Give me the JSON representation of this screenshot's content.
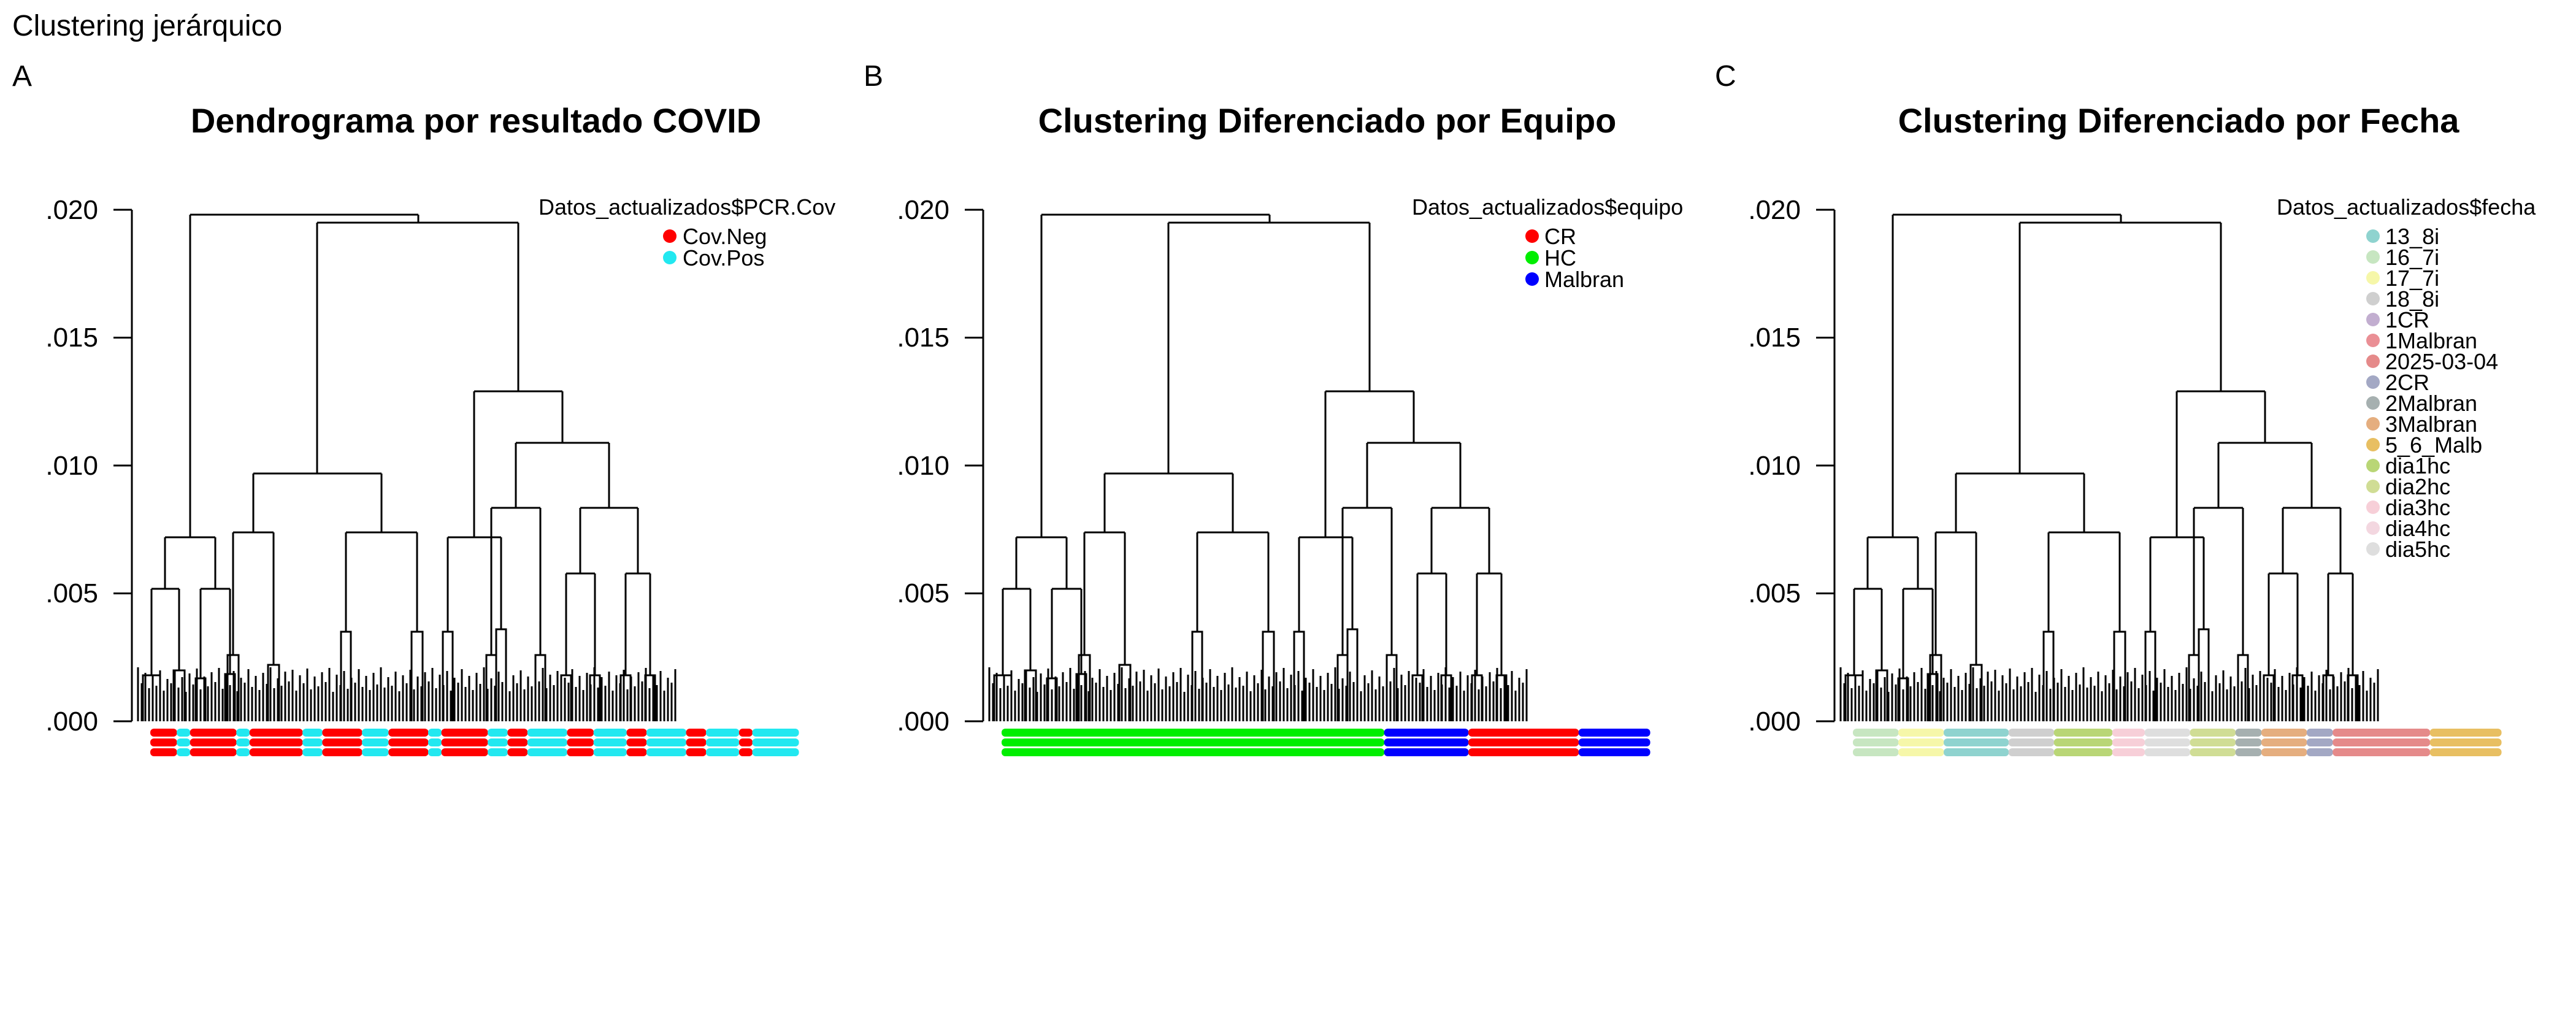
{
  "figure_title": "Clustering jerárquico",
  "chart_data": [
    {
      "type": "dendrogram",
      "panel_label": "A",
      "title": "Dendrograma por resultado COVID",
      "xlabel": "",
      "ylabel": "",
      "ylim": [
        0,
        0.02
      ],
      "yticks": [
        ".000",
        ".005",
        ".010",
        ".015",
        ".020"
      ],
      "merge_heights": {
        "root": 0.0198,
        "left_branch": 0.0072,
        "right_branch": 0.0195,
        "mid_cluster": 0.0097,
        "right_cluster": 0.0129
      },
      "legend": {
        "title": "Datos_actualizados$PCR.Cov",
        "placement": "top-right",
        "entries": [
          {
            "label": "Cov.Neg",
            "color": "#ff0000"
          },
          {
            "label": "Cov.Pos",
            "color": "#22e8f0"
          }
        ]
      },
      "leaf_color_runs": [
        {
          "label": "Cov.Neg",
          "share": 0.04
        },
        {
          "label": "Cov.Pos",
          "share": 0.02
        },
        {
          "label": "Cov.Neg",
          "share": 0.07
        },
        {
          "label": "Cov.Pos",
          "share": 0.02
        },
        {
          "label": "Cov.Neg",
          "share": 0.08
        },
        {
          "label": "Cov.Pos",
          "share": 0.03
        },
        {
          "label": "Cov.Neg",
          "share": 0.06
        },
        {
          "label": "Cov.Pos",
          "share": 0.04
        },
        {
          "label": "Cov.Neg",
          "share": 0.06
        },
        {
          "label": "Cov.Pos",
          "share": 0.02
        },
        {
          "label": "Cov.Neg",
          "share": 0.07
        },
        {
          "label": "Cov.Pos",
          "share": 0.03
        },
        {
          "label": "Cov.Neg",
          "share": 0.03
        },
        {
          "label": "Cov.Pos",
          "share": 0.06
        },
        {
          "label": "Cov.Neg",
          "share": 0.04
        },
        {
          "label": "Cov.Pos",
          "share": 0.05
        },
        {
          "label": "Cov.Neg",
          "share": 0.03
        },
        {
          "label": "Cov.Pos",
          "share": 0.06
        },
        {
          "label": "Cov.Neg",
          "share": 0.03
        },
        {
          "label": "Cov.Pos",
          "share": 0.05
        },
        {
          "label": "Cov.Neg",
          "share": 0.02
        },
        {
          "label": "Cov.Pos",
          "share": 0.07
        }
      ]
    },
    {
      "type": "dendrogram",
      "panel_label": "B",
      "title": "Clustering Diferenciado por Equipo",
      "xlabel": "",
      "ylabel": "",
      "ylim": [
        0,
        0.02
      ],
      "yticks": [
        ".000",
        ".005",
        ".010",
        ".015",
        ".020"
      ],
      "merge_heights": {
        "root": 0.0198,
        "left_branch": 0.0072,
        "right_branch": 0.0195,
        "mid_cluster": 0.0097,
        "right_cluster": 0.0129
      },
      "legend": {
        "title": "Datos_actualizados$equipo",
        "placement": "top-right",
        "entries": [
          {
            "label": "CR",
            "color": "#ff0000"
          },
          {
            "label": "HC",
            "color": "#00ee00"
          },
          {
            "label": "Malbran",
            "color": "#0000ff"
          }
        ]
      },
      "leaf_color_runs": [
        {
          "label": "HC",
          "share": 0.59
        },
        {
          "label": "Malbran",
          "share": 0.13
        },
        {
          "label": "CR",
          "share": 0.17
        },
        {
          "label": "Malbran",
          "share": 0.11
        }
      ]
    },
    {
      "type": "dendrogram",
      "panel_label": "C",
      "title": "Clustering Diferenciado por Fecha",
      "xlabel": "",
      "ylabel": "",
      "ylim": [
        0,
        0.02
      ],
      "yticks": [
        ".000",
        ".005",
        ".010",
        ".015",
        ".020"
      ],
      "merge_heights": {
        "root": 0.0198,
        "left_branch": 0.0072,
        "right_branch": 0.0195,
        "mid_cluster": 0.0097,
        "right_cluster": 0.0129
      },
      "legend": {
        "title": "Datos_actualizados$fecha",
        "placement": "top-right",
        "entries": [
          {
            "label": "13_8i",
            "color": "#8fd3cf"
          },
          {
            "label": "16_7i",
            "color": "#c7e6c1"
          },
          {
            "label": "17_7i",
            "color": "#f6f7a9"
          },
          {
            "label": "18_8i",
            "color": "#cfcfcf"
          },
          {
            "label": "1CR",
            "color": "#c2aed0"
          },
          {
            "label": "1Malbran",
            "color": "#ea8f95"
          },
          {
            "label": "2025-03-04",
            "color": "#e58a8a"
          },
          {
            "label": "2CR",
            "color": "#a3a8c4"
          },
          {
            "label": "2Malbran",
            "color": "#a6b0b0"
          },
          {
            "label": "3Malbran",
            "color": "#e5ae7f"
          },
          {
            "label": "5_6_Malb",
            "color": "#e8bf62"
          },
          {
            "label": "dia1hc",
            "color": "#b9d676"
          },
          {
            "label": "dia2hc",
            "color": "#d0dd95"
          },
          {
            "label": "dia3hc",
            "color": "#f7cfd8"
          },
          {
            "label": "dia4hc",
            "color": "#f3d7e0"
          },
          {
            "label": "dia5hc",
            "color": "#dedede"
          }
        ]
      },
      "leaf_color_runs": [
        {
          "label": "16_7i",
          "share": 0.07
        },
        {
          "label": "17_7i",
          "share": 0.07
        },
        {
          "label": "13_8i",
          "share": 0.1
        },
        {
          "label": "18_8i",
          "share": 0.07
        },
        {
          "label": "dia1hc",
          "share": 0.09
        },
        {
          "label": "dia3hc",
          "share": 0.05
        },
        {
          "label": "dia5hc",
          "share": 0.07
        },
        {
          "label": "dia2hc",
          "share": 0.07
        },
        {
          "label": "2Malbran",
          "share": 0.04
        },
        {
          "label": "3Malbran",
          "share": 0.07
        },
        {
          "label": "2CR",
          "share": 0.04
        },
        {
          "label": "2025-03-04",
          "share": 0.15
        },
        {
          "label": "5_6_Malb",
          "share": 0.11
        }
      ]
    }
  ]
}
